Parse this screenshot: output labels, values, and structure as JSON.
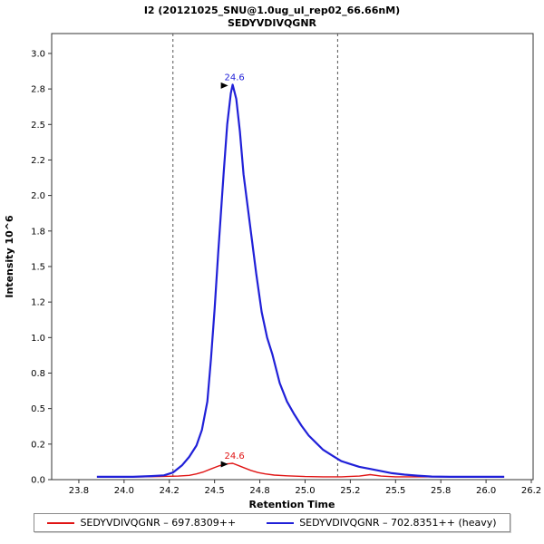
{
  "chart_data": {
    "type": "line",
    "title": "I2 (20121025_SNU@1.0ug_ul_rep02_66.66nM)",
    "subtitle": "SEDYVDIVQGNR",
    "xlabel": "Retention Time",
    "ylabel": "Intensity 10^6",
    "xlim": [
      23.6,
      26.26
    ],
    "ylim": [
      0,
      3.14
    ],
    "grid": false,
    "legend_position": "bottom",
    "x_ticks": [
      {
        "v": 23.75,
        "label": "23.8"
      },
      {
        "v": 24.0,
        "label": "24.0"
      },
      {
        "v": 24.25,
        "label": "24.2"
      },
      {
        "v": 24.5,
        "label": "24.5"
      },
      {
        "v": 24.75,
        "label": "24.8"
      },
      {
        "v": 25.0,
        "label": "25.0"
      },
      {
        "v": 25.25,
        "label": "25.2"
      },
      {
        "v": 25.5,
        "label": "25.5"
      },
      {
        "v": 25.75,
        "label": "25.8"
      },
      {
        "v": 26.0,
        "label": "26.0"
      },
      {
        "v": 26.25,
        "label": "26.2"
      }
    ],
    "y_ticks": [
      {
        "v": 0,
        "label": "0.0"
      },
      {
        "v": 0.25,
        "label": "0.2"
      },
      {
        "v": 0.5,
        "label": "0.5"
      },
      {
        "v": 0.75,
        "label": "0.8"
      },
      {
        "v": 1.0,
        "label": "1.0"
      },
      {
        "v": 1.25,
        "label": "1.2"
      },
      {
        "v": 1.5,
        "label": "1.5"
      },
      {
        "v": 1.75,
        "label": "1.8"
      },
      {
        "v": 2.0,
        "label": "2.0"
      },
      {
        "v": 2.25,
        "label": "2.2"
      },
      {
        "v": 2.5,
        "label": "2.5"
      },
      {
        "v": 2.75,
        "label": "2.8"
      },
      {
        "v": 3.0,
        "label": "3.0"
      }
    ],
    "integration_boundaries": [
      24.27,
      25.18
    ],
    "series": [
      {
        "name": "SEDYVDIVQGNR – 697.8309++",
        "color": "#e01414",
        "peak_annotation": {
          "x": 24.6,
          "y": 0.115,
          "text": "24.6"
        },
        "points": [
          [
            23.85,
            0.02
          ],
          [
            24.0,
            0.02
          ],
          [
            24.1,
            0.02
          ],
          [
            24.2,
            0.022
          ],
          [
            24.3,
            0.025
          ],
          [
            24.36,
            0.03
          ],
          [
            24.4,
            0.04
          ],
          [
            24.44,
            0.055
          ],
          [
            24.48,
            0.075
          ],
          [
            24.52,
            0.095
          ],
          [
            24.56,
            0.11
          ],
          [
            24.6,
            0.115
          ],
          [
            24.63,
            0.1
          ],
          [
            24.66,
            0.085
          ],
          [
            24.7,
            0.065
          ],
          [
            24.74,
            0.05
          ],
          [
            24.78,
            0.04
          ],
          [
            24.83,
            0.032
          ],
          [
            24.9,
            0.027
          ],
          [
            25.0,
            0.022
          ],
          [
            25.1,
            0.02
          ],
          [
            25.2,
            0.02
          ],
          [
            25.3,
            0.025
          ],
          [
            25.36,
            0.035
          ],
          [
            25.42,
            0.025
          ],
          [
            25.5,
            0.02
          ],
          [
            25.6,
            0.02
          ],
          [
            25.7,
            0.02
          ],
          [
            25.8,
            0.02
          ],
          [
            25.9,
            0.02
          ],
          [
            26.0,
            0.02
          ],
          [
            26.1,
            0.02
          ]
        ]
      },
      {
        "name": "SEDYVDIVQGNR – 702.8351++ (heavy)",
        "color": "#2020d8",
        "peak_annotation": {
          "x": 24.6,
          "y": 2.78,
          "text": "24.6"
        },
        "points": [
          [
            23.85,
            0.02
          ],
          [
            23.95,
            0.02
          ],
          [
            24.05,
            0.02
          ],
          [
            24.15,
            0.025
          ],
          [
            24.22,
            0.03
          ],
          [
            24.27,
            0.05
          ],
          [
            24.32,
            0.1
          ],
          [
            24.36,
            0.16
          ],
          [
            24.4,
            0.24
          ],
          [
            24.43,
            0.35
          ],
          [
            24.46,
            0.55
          ],
          [
            24.48,
            0.85
          ],
          [
            24.5,
            1.2
          ],
          [
            24.52,
            1.6
          ],
          [
            24.55,
            2.15
          ],
          [
            24.57,
            2.5
          ],
          [
            24.59,
            2.72
          ],
          [
            24.6,
            2.78
          ],
          [
            24.62,
            2.68
          ],
          [
            24.64,
            2.45
          ],
          [
            24.66,
            2.15
          ],
          [
            24.68,
            1.95
          ],
          [
            24.7,
            1.75
          ],
          [
            24.73,
            1.45
          ],
          [
            24.76,
            1.18
          ],
          [
            24.79,
            1.0
          ],
          [
            24.82,
            0.88
          ],
          [
            24.86,
            0.68
          ],
          [
            24.9,
            0.55
          ],
          [
            24.94,
            0.46
          ],
          [
            24.98,
            0.38
          ],
          [
            25.02,
            0.31
          ],
          [
            25.06,
            0.26
          ],
          [
            25.1,
            0.21
          ],
          [
            25.15,
            0.17
          ],
          [
            25.2,
            0.13
          ],
          [
            25.25,
            0.11
          ],
          [
            25.3,
            0.09
          ],
          [
            25.36,
            0.075
          ],
          [
            25.42,
            0.06
          ],
          [
            25.48,
            0.045
          ],
          [
            25.55,
            0.035
          ],
          [
            25.62,
            0.028
          ],
          [
            25.7,
            0.022
          ],
          [
            25.8,
            0.02
          ],
          [
            25.9,
            0.02
          ],
          [
            26.0,
            0.02
          ],
          [
            26.1,
            0.02
          ]
        ]
      }
    ]
  }
}
